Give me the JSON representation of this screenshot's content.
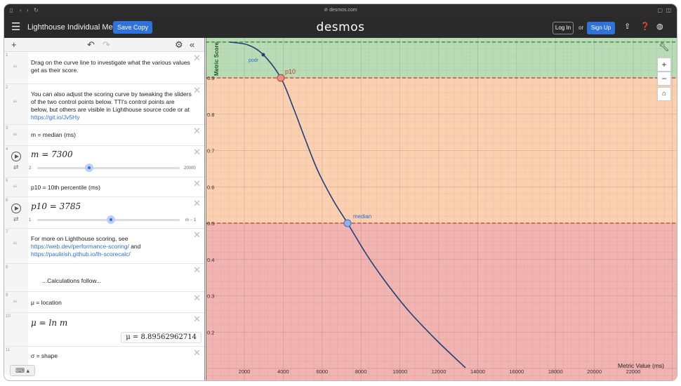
{
  "browser": {
    "url": "desmos.com"
  },
  "header": {
    "title": "Lighthouse Individual Metri…",
    "save_label": "Save Copy",
    "brand": "desmos",
    "login_label": "Log In",
    "or_label": "or",
    "signup_label": "Sign Up"
  },
  "expressions": [
    {
      "num": "1",
      "text": "Drag on the curve line to investigate what the various values get as their score."
    },
    {
      "num": "2",
      "text_before": "You can also adjust the scoring curve by tweaking the sliders of the two control points below. TTI's control points are below, but others are visible in Lighthouse source code or at ",
      "link": "https://git.io/Jv5Hy"
    },
    {
      "num": "3",
      "text": "m = median (ms)"
    },
    {
      "num": "4",
      "latex": "m = 7300",
      "slider_min": "2",
      "slider_max": "20000",
      "value_fraction": 0.365
    },
    {
      "num": "5",
      "text": "p10 = 10th percentile (ms)"
    },
    {
      "num": "6",
      "latex": "p10 = 3785",
      "slider_min": "1",
      "slider_max": "m − 1",
      "value_fraction": 0.518
    },
    {
      "num": "7",
      "text_before": "For more on Lighthouse scoring, see ",
      "link1": "https://web.dev/performance-scoring/",
      "text_mid": " and ",
      "link2": "https://paulirish.github.io/lh-scorecalc/"
    },
    {
      "num": "8",
      "text": "...Calculations follow..."
    },
    {
      "num": "9",
      "text": "μ = location"
    },
    {
      "num": "10",
      "latex": "μ = ln m",
      "eval": "μ = 8.89562962714"
    },
    {
      "num": "11",
      "text": "σ = shape"
    }
  ],
  "graph": {
    "x_axis_label": "Metric Value (ms)",
    "y_axis_label": "Metric Score",
    "x_ticks": [
      "2000",
      "4000",
      "6000",
      "8000",
      "10000",
      "12000",
      "14000",
      "16000",
      "18000",
      "20000",
      "22000"
    ],
    "y_ticks": [
      "0.9",
      "0.8",
      "0.7",
      "0.6",
      "0.5",
      "0.4",
      "0.3",
      "0.2"
    ],
    "point_labels": {
      "pod": "podr",
      "p10": "p10",
      "median": "median"
    },
    "colors": {
      "green": "#b9dcb6",
      "orange": "#fbd0b0",
      "red": "#f1b4b1",
      "curve": "#1f3f7a"
    }
  }
}
